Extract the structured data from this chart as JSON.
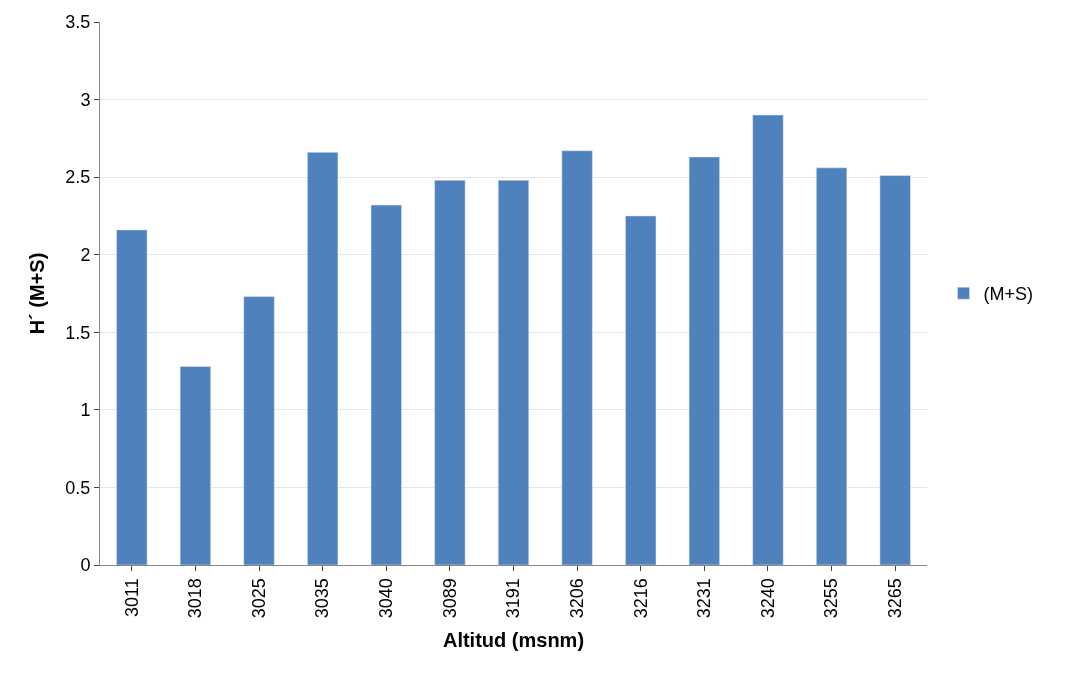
{
  "chart_data": {
    "type": "bar",
    "xlabel": "Altitud (msnm)",
    "ylabel": "H´ (M+S)",
    "categories": [
      "3011",
      "3018",
      "3025",
      "3035",
      "3040",
      "3089",
      "3191",
      "3206",
      "3216",
      "3231",
      "3240",
      "3255",
      "3265"
    ],
    "series": [
      {
        "name": "(M+S)",
        "color": "#4f81bd",
        "values": [
          2.16,
          1.28,
          1.73,
          2.66,
          2.32,
          2.48,
          2.48,
          2.67,
          2.25,
          2.63,
          2.9,
          2.56,
          2.51
        ]
      }
    ],
    "ylim": [
      0,
      3.5
    ],
    "yticks": [
      0,
      0.5,
      1,
      1.5,
      2,
      2.5,
      3,
      3.5
    ],
    "grid": "y",
    "legend": "right"
  }
}
